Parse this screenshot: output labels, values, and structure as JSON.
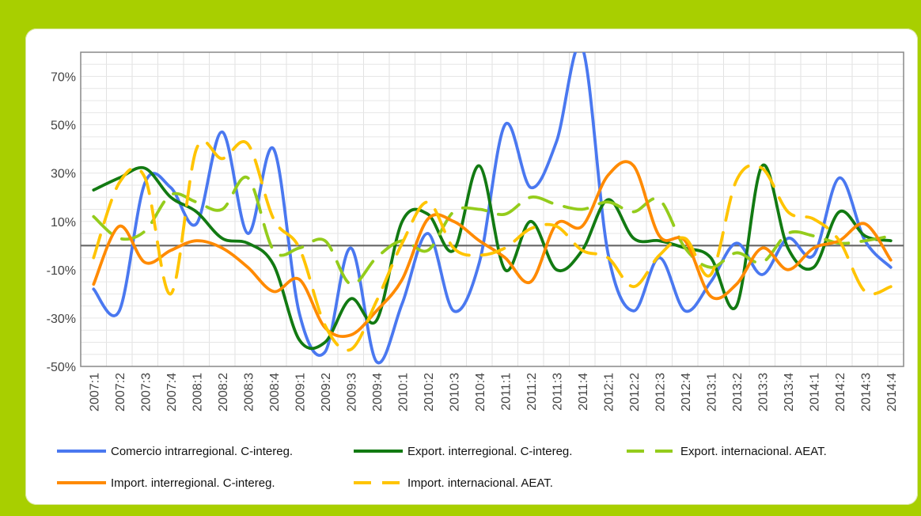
{
  "chart_data": {
    "type": "line",
    "title": "",
    "xlabel": "",
    "ylabel": "",
    "ylim": [
      -50,
      80
    ],
    "yticks": [
      -50,
      -30,
      -10,
      10,
      30,
      50,
      70
    ],
    "ytick_labels": [
      "-50%",
      "-30%",
      "-10%",
      "10%",
      "30%",
      "50%",
      "70%"
    ],
    "categories": [
      "2007:1",
      "2007:2",
      "2007:3",
      "2007:4",
      "2008:1",
      "2008:2",
      "2008:3",
      "2008:4",
      "2009:1",
      "2009:2",
      "2009:3",
      "2009:4",
      "2010:1",
      "2010:2",
      "2010:3",
      "2010:4",
      "2011:1",
      "2011:2",
      "2011:3",
      "2011:4",
      "2012:1",
      "2012:2",
      "2012:3",
      "2012:4",
      "2013:1",
      "2013:2",
      "2013:3",
      "2013:4",
      "2014:1",
      "2014:2",
      "2014:3",
      "2014:4"
    ],
    "grid": true,
    "legend_position": "bottom",
    "series": [
      {
        "name": "Comercio intrarregional. C-intereg.",
        "color": "#4a78f0",
        "dash": "solid",
        "values": [
          -18,
          -27,
          26,
          24,
          9,
          47,
          5,
          40,
          -28,
          -44,
          -1,
          -48,
          -24,
          5,
          -27,
          -7,
          50,
          24,
          43,
          82,
          -3,
          -27,
          -5,
          -27,
          -15,
          1,
          -12,
          3,
          -4,
          28,
          2,
          -9
        ]
      },
      {
        "name": "Export. interregional. C-intereg.",
        "color": "#127a12",
        "dash": "solid",
        "values": [
          23,
          28,
          32,
          20,
          14,
          3,
          1,
          -8,
          -39,
          -40,
          -22,
          -31,
          10,
          13,
          -2,
          33,
          -10,
          10,
          -10,
          -2,
          19,
          3,
          2,
          -1,
          -5,
          -25,
          33,
          -1,
          -9,
          14,
          4,
          2
        ]
      },
      {
        "name": "Export. internacional. AEAT.",
        "color": "#94cc1c",
        "dash": "long",
        "values": [
          12,
          3,
          6,
          21,
          18,
          15,
          28,
          -2,
          -1,
          2,
          -16,
          -5,
          2,
          -2,
          14,
          15,
          13,
          20,
          17,
          15,
          18,
          14,
          19,
          -1,
          -9,
          -3,
          -7,
          5,
          4,
          1,
          2,
          4
        ]
      },
      {
        "name": "Import. interregional. C-intereg.",
        "color": "#ff8a00",
        "dash": "solid",
        "values": [
          -16,
          8,
          -7,
          -2,
          2,
          -1,
          -9,
          -19,
          -14,
          -34,
          -37,
          -27,
          -14,
          11,
          10,
          2,
          -5,
          -15,
          9,
          8,
          29,
          33,
          4,
          2,
          -21,
          -16,
          -1,
          -10,
          -1,
          2,
          9,
          -6
        ]
      },
      {
        "name": "Import. internacional. AEAT.",
        "color": "#ffc400",
        "dash": "long",
        "values": [
          -5,
          26,
          28,
          -20,
          40,
          36,
          42,
          11,
          -1,
          -33,
          -43,
          -23,
          1,
          18,
          -1,
          -4,
          -1,
          7,
          8,
          -2,
          -5,
          -17,
          -4,
          3,
          -12,
          27,
          32,
          14,
          11,
          2,
          -19,
          -17
        ]
      }
    ]
  }
}
